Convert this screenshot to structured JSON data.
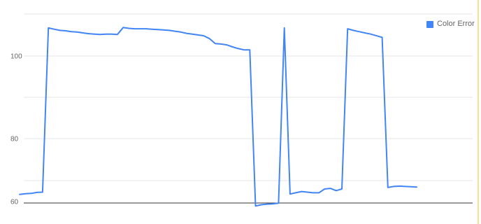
{
  "chart_data": {
    "type": "line",
    "title": "",
    "xlabel": "",
    "ylabel": "",
    "ylim": [
      59,
      107
    ],
    "yticks": [
      60,
      80,
      100
    ],
    "grid": true,
    "legend_position": "top-right",
    "series": [
      {
        "name": "Color Error",
        "color": "#4285f4",
        "values": [
          62.3,
          62.5,
          62.6,
          62.9,
          63.0,
          106.8,
          106.5,
          106.2,
          106.1,
          105.9,
          105.8,
          105.6,
          105.4,
          105.3,
          105.2,
          105.3,
          105.3,
          105.2,
          106.9,
          106.7,
          106.6,
          106.6,
          106.6,
          106.5,
          106.4,
          106.3,
          106.2,
          106.0,
          105.8,
          105.5,
          105.3,
          105.1,
          104.9,
          104.2,
          103.0,
          102.9,
          102.7,
          102.2,
          101.8,
          101.5,
          101.5,
          58.6,
          59.0,
          59.2,
          59.3,
          59.5,
          106.8,
          62.4,
          62.8,
          63.2,
          63.0,
          62.8,
          62.8,
          64.0,
          64.2,
          63.5,
          64.0,
          106.6,
          106.2,
          105.9,
          105.6,
          105.3,
          104.9,
          104.5,
          64.5,
          64.8,
          64.9,
          64.8,
          64.7,
          64.6
        ]
      }
    ],
    "legend": [
      "Color Error"
    ]
  }
}
